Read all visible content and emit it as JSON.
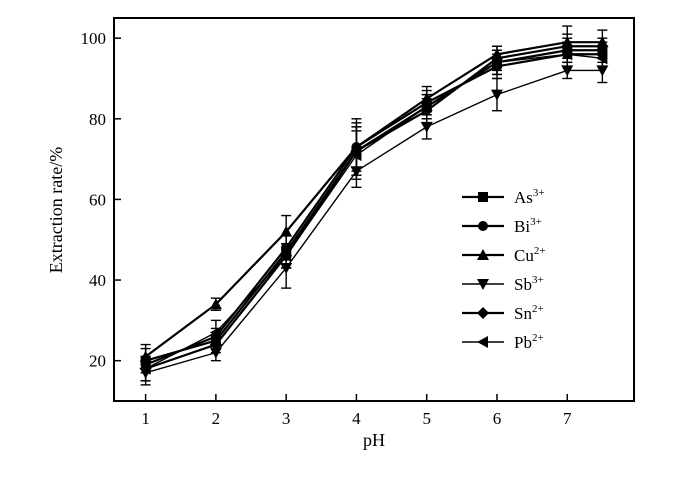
{
  "chart_data": {
    "type": "line",
    "xlabel": "pH",
    "ylabel": "Extraction rate/%",
    "xlim": [
      0.55,
      7.95
    ],
    "ylim": [
      10,
      105
    ],
    "x_ticks": [
      "1",
      "2",
      "3",
      "4",
      "5",
      "6",
      "7"
    ],
    "y_ticks": [
      "20",
      "40",
      "60",
      "80",
      "100"
    ],
    "x": [
      1,
      2,
      3,
      4,
      5,
      6,
      7,
      7.5
    ],
    "legend_position": "center-right",
    "series": [
      {
        "name": "As",
        "sup": "3+",
        "marker": "square",
        "stroke": 2.2,
        "values": [
          20,
          25,
          47,
          72,
          83,
          94,
          97,
          97
        ],
        "errors": [
          3,
          2,
          4,
          6,
          3,
          3,
          3,
          2
        ]
      },
      {
        "name": "Bi",
        "sup": "3+",
        "marker": "circle",
        "stroke": 2.2,
        "values": [
          19,
          26,
          48,
          73,
          84,
          93,
          96,
          96
        ],
        "errors": [
          2,
          2,
          3,
          6,
          3,
          3,
          3,
          2
        ]
      },
      {
        "name": "Cu",
        "sup": "2+",
        "marker": "triangle-up",
        "stroke": 2.2,
        "values": [
          21,
          34,
          52,
          73,
          85,
          96,
          99,
          99
        ],
        "errors": [
          3,
          1.5,
          4,
          7,
          3,
          2,
          4,
          3
        ]
      },
      {
        "name": "Sb",
        "sup": "3+",
        "marker": "triangle-down",
        "stroke": 1.4,
        "values": [
          17,
          22,
          43,
          67,
          78,
          86,
          92,
          92
        ],
        "errors": [
          3,
          2,
          5,
          4,
          3,
          4,
          2,
          3
        ]
      },
      {
        "name": "Sn",
        "sup": "2+",
        "marker": "diamond",
        "stroke": 2.2,
        "values": [
          18,
          24,
          46,
          72,
          82,
          95,
          98,
          98
        ],
        "errors": [
          3,
          2,
          3,
          6,
          3,
          3,
          3,
          2
        ]
      },
      {
        "name": "Pb",
        "sup": "2+",
        "marker": "triangle-left",
        "stroke": 1.4,
        "values": [
          18,
          27,
          46,
          71,
          83,
          94,
          96,
          95
        ],
        "errors": [
          3,
          3,
          3,
          6,
          3,
          3,
          3,
          2
        ]
      }
    ]
  }
}
